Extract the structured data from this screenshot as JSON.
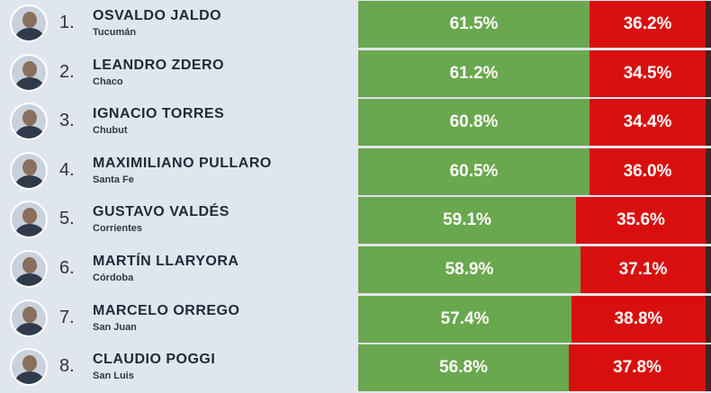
{
  "rows": [
    {
      "rank": "1.",
      "name": "OSVALDO JALDO",
      "province": "Tucumán",
      "approval": "61.5%",
      "disapproval": "36.2%"
    },
    {
      "rank": "2.",
      "name": "LEANDRO ZDERO",
      "province": "Chaco",
      "approval": "61.2%",
      "disapproval": "34.5%"
    },
    {
      "rank": "3.",
      "name": "IGNACIO TORRES",
      "province": "Chubut",
      "approval": "60.8%",
      "disapproval": "34.4%"
    },
    {
      "rank": "4.",
      "name": "MAXIMILIANO PULLARO",
      "province": "Santa Fe",
      "approval": "60.5%",
      "disapproval": "36.0%"
    },
    {
      "rank": "5.",
      "name": "GUSTAVO VALDÉS",
      "province": "Corrientes",
      "approval": "59.1%",
      "disapproval": "35.6%"
    },
    {
      "rank": "6.",
      "name": "MARTÍN LLARYORA",
      "province": "Córdoba",
      "approval": "58.9%",
      "disapproval": "37.1%"
    },
    {
      "rank": "7.",
      "name": "MARCELO ORREGO",
      "province": "San Juan",
      "approval": "57.4%",
      "disapproval": "38.8%"
    },
    {
      "rank": "8.",
      "name": "CLAUDIO POGGI",
      "province": "San Luis",
      "approval": "56.8%",
      "disapproval": "37.8%"
    }
  ]
}
